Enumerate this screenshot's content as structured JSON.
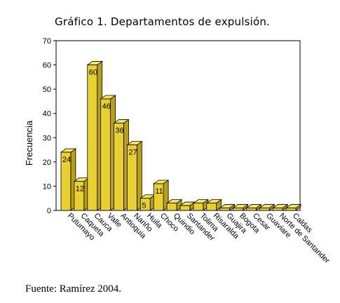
{
  "chart_data": {
    "type": "bar",
    "title": "Gráfico 1. Departamentos de expulsión.",
    "ylabel": "Frecuencia",
    "xlabel": "",
    "ylim": [
      0,
      70
    ],
    "yticks": [
      0,
      10,
      20,
      30,
      40,
      50,
      60,
      70
    ],
    "categories": [
      "Putumayo",
      "Caqueta",
      "Cauca",
      "Valle",
      "Antioquia",
      "Nariño",
      "Huila",
      "Choco",
      "Quindio",
      "Santander",
      "Tolima",
      "Risaralda",
      "Guajira",
      "Bogota",
      "Cesar",
      "Guaviare",
      "Norte de Santander",
      "Caldas"
    ],
    "values": [
      24,
      12,
      60,
      46,
      36,
      27,
      5,
      11,
      3,
      2,
      3,
      3,
      1,
      1,
      1,
      1,
      1,
      1
    ],
    "data_labels": [
      "24",
      "12",
      "60",
      "46",
      "36",
      "27",
      "5",
      "11",
      "",
      "",
      "",
      "",
      "",
      "",
      "",
      "",
      "",
      ""
    ],
    "grid": false,
    "bar_color": "#e8d030",
    "bar_side_color": "#b8a010",
    "bar_top_color": "#f4e460"
  },
  "footer": {
    "source": "Fuente: Ramírez 2004."
  }
}
